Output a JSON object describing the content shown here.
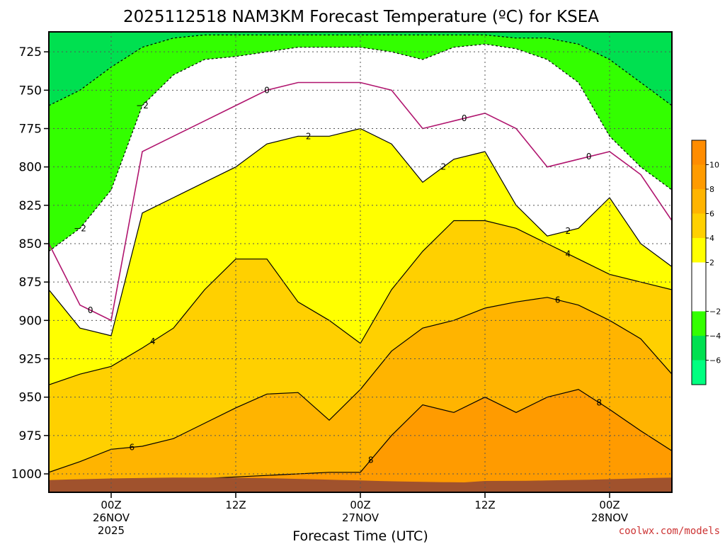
{
  "chart_data": {
    "type": "heatmap",
    "title": "2025112518 NAM3KM Forecast Temperature (ºC) for KSEA",
    "xlabel": "Forecast Time (UTC)",
    "ylabel": "",
    "x_unit": "hours since 2025-11-25 18Z",
    "xlim": [
      0,
      60
    ],
    "ylim": [
      1012,
      712
    ],
    "y_ticks": [
      725,
      750,
      775,
      800,
      825,
      850,
      875,
      900,
      925,
      950,
      975,
      1000
    ],
    "x_ticks": [
      {
        "x": 6,
        "label": "00Z",
        "sub1": "26NOV",
        "sub2": "2025"
      },
      {
        "x": 18,
        "label": "12Z",
        "sub1": "",
        "sub2": ""
      },
      {
        "x": 30,
        "label": "00Z",
        "sub1": "27NOV",
        "sub2": ""
      },
      {
        "x": 42,
        "label": "12Z",
        "sub1": "",
        "sub2": ""
      },
      {
        "x": 54,
        "label": "00Z",
        "sub1": "28NOV",
        "sub2": ""
      }
    ],
    "colorbar": {
      "ticks": [
        "10",
        "8",
        "6",
        "4",
        "2",
        "−2",
        "−4",
        "−6"
      ],
      "bands": [
        {
          "min": 10,
          "max": 12,
          "color": "#ff8c00"
        },
        {
          "min": 8,
          "max": 10,
          "color": "#ff9b00"
        },
        {
          "min": 6,
          "max": 8,
          "color": "#ffb400"
        },
        {
          "min": 4,
          "max": 6,
          "color": "#ffd000"
        },
        {
          "min": 2,
          "max": 4,
          "color": "#ffff00"
        },
        {
          "min": -2,
          "max": 2,
          "color": "#ffffff"
        },
        {
          "min": -4,
          "max": -2,
          "color": "#33ff00"
        },
        {
          "min": -6,
          "max": -4,
          "color": "#00e050"
        },
        {
          "min": -8,
          "max": -6,
          "color": "#00ff80"
        }
      ]
    },
    "isotherm_pressure_by_hour": {
      "hours": [
        0,
        3,
        6,
        9,
        12,
        15,
        18,
        21,
        24,
        27,
        30,
        33,
        36,
        39,
        42,
        45,
        48,
        51,
        54,
        57,
        60
      ],
      "t_8": [
        1010,
        1006,
        1004,
        1005,
        1004,
        1003,
        1002,
        1001,
        1000,
        999,
        999,
        975,
        955,
        960,
        950,
        960,
        950,
        945,
        958,
        972,
        985
      ],
      "t_6": [
        999,
        992,
        984,
        982,
        977,
        967,
        957,
        948,
        947,
        965,
        945,
        920,
        905,
        900,
        892,
        888,
        885,
        890,
        900,
        912,
        935
      ],
      "t_4": [
        942,
        935,
        930,
        918,
        905,
        880,
        860,
        860,
        888,
        900,
        915,
        880,
        855,
        835,
        835,
        840,
        850,
        860,
        870,
        875,
        880
      ],
      "t_2": [
        880,
        905,
        910,
        830,
        820,
        810,
        800,
        785,
        780,
        780,
        775,
        785,
        810,
        795,
        790,
        825,
        845,
        840,
        820,
        850,
        865
      ],
      "t_0": [
        850,
        890,
        900,
        790,
        780,
        770,
        760,
        750,
        745,
        745,
        745,
        750,
        775,
        770,
        765,
        775,
        800,
        795,
        790,
        805,
        835
      ],
      "t_m2": [
        855,
        840,
        815,
        760,
        740,
        730,
        728,
        725,
        722,
        722,
        722,
        725,
        730,
        722,
        720,
        723,
        730,
        745,
        780,
        800,
        815
      ],
      "t_m4": [
        760,
        750,
        735,
        722,
        716,
        714,
        714,
        714,
        714,
        714,
        714,
        714,
        714,
        714,
        714,
        716,
        716,
        720,
        730,
        745,
        760
      ]
    },
    "contour_labels": [
      "−2",
      "0",
      "2",
      "4",
      "6",
      "8"
    ],
    "terrain_color": "#a0522d"
  },
  "credit": "coolwx.com/models"
}
